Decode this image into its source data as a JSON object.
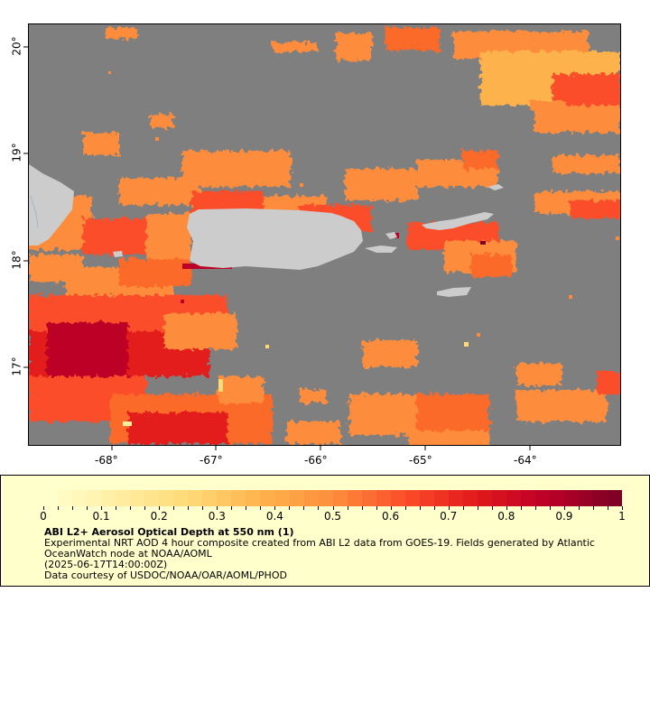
{
  "map": {
    "lon_labels": [
      "-68°",
      "-67°",
      "-66°",
      "-65°",
      "-64°"
    ],
    "lat_labels": [
      "20°",
      "19°",
      "18°",
      "17°"
    ],
    "colors": {
      "water_no_data": "#7f7f7f",
      "land": "#cccccc",
      "frame": "#000000"
    }
  },
  "legend": {
    "colorbar_ticks": [
      "0",
      "0.1",
      "0.2",
      "0.3",
      "0.4",
      "0.5",
      "0.6",
      "0.7",
      "0.8",
      "0.9",
      "1"
    ],
    "colormap": [
      "#ffffcc",
      "#ffeda0",
      "#fed976",
      "#feb24c",
      "#fd8d3c",
      "#fc4e2a",
      "#e31a1c",
      "#bd0026",
      "#800026"
    ],
    "title": "ABI L2+ Aerosol Optical Depth at 550 nm (1)",
    "line1": "Experimental NRT AOD 4 hour composite created from ABI L2 data from GOES-19. Fields generated by Atlantic OceanWatch node at NOAA/AOML",
    "line2": "(2025-06-17T14:00:00Z)",
    "line3": "Data courtesy of USDOC/NOAA/OAR/AOML/PHOD"
  }
}
